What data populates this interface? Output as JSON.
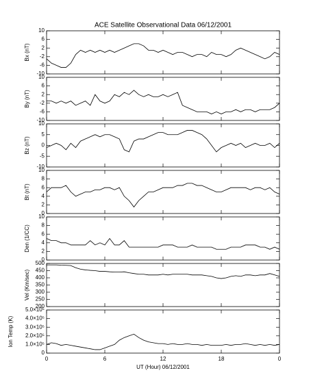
{
  "chart_data": [
    {
      "type": "line",
      "title": "ACE Satellite Observational Data   06/12/2001",
      "ylabel": "Bx (nT)",
      "color": "#000000",
      "x": [
        0,
        0.5,
        1,
        1.5,
        2,
        2.5,
        3,
        3.5,
        4,
        4.5,
        5,
        5.5,
        6,
        6.5,
        7,
        7.5,
        8,
        8.5,
        9,
        9.5,
        10,
        10.5,
        11,
        11.5,
        12,
        12.5,
        13,
        13.5,
        14,
        14.5,
        15,
        15.5,
        16,
        16.5,
        17,
        17.5,
        18,
        18.5,
        19,
        19.5,
        20,
        20.5,
        21,
        21.5,
        22,
        22.5,
        23,
        23.5,
        24
      ],
      "values": [
        -3,
        -5,
        -6,
        -7,
        -7,
        -5,
        -1,
        1,
        0,
        1,
        0,
        1,
        0,
        1,
        0,
        1,
        2,
        3,
        4,
        4,
        3,
        1,
        1,
        0,
        1,
        0,
        -1,
        0,
        0,
        -1,
        -2,
        -1,
        -1,
        -2,
        0,
        -1,
        -1,
        -2,
        -1,
        1,
        2,
        1,
        0,
        -1,
        -2,
        -3,
        -2,
        0,
        -1
      ],
      "xlim": [
        0,
        24
      ],
      "xticks": [
        0,
        6,
        12,
        18,
        24
      ],
      "ylim": [
        -10,
        10
      ],
      "yticks": [
        -10,
        -6,
        -2,
        2,
        6,
        10
      ]
    },
    {
      "type": "line",
      "ylabel": "By (nT)",
      "color": "#000000",
      "x": [
        0,
        0.5,
        1,
        1.5,
        2,
        2.5,
        3,
        3.5,
        4,
        4.5,
        5,
        5.5,
        6,
        6.5,
        7,
        7.5,
        8,
        8.5,
        9,
        9.5,
        10,
        10.5,
        11,
        11.5,
        12,
        12.5,
        13,
        13.5,
        14,
        14.5,
        15,
        15.5,
        16,
        16.5,
        17,
        17.5,
        18,
        18.5,
        19,
        19.5,
        20,
        20.5,
        21,
        21.5,
        22,
        22.5,
        23,
        23.5,
        24
      ],
      "values": [
        -1,
        -1,
        -2,
        -1,
        -2,
        -1,
        -3,
        -2,
        -1,
        -3,
        2,
        -1,
        -2,
        -1,
        2,
        1,
        3,
        2,
        4,
        2,
        1,
        2,
        1,
        1,
        2,
        1,
        2,
        3,
        -3,
        -4,
        -5,
        -6,
        -6,
        -6,
        -7,
        -6,
        -7,
        -6,
        -6,
        -5,
        -6,
        -5,
        -5,
        -6,
        -5,
        -5,
        -5,
        -4,
        -2
      ],
      "xlim": [
        0,
        24
      ],
      "xticks": [
        0,
        6,
        12,
        18,
        24
      ],
      "ylim": [
        -10,
        10
      ],
      "yticks": [
        -10,
        -6,
        -2,
        2,
        6,
        10
      ]
    },
    {
      "type": "line",
      "ylabel": "Bz (nT)",
      "color": "#000000",
      "x": [
        0,
        0.5,
        1,
        1.5,
        2,
        2.5,
        3,
        3.5,
        4,
        4.5,
        5,
        5.5,
        6,
        6.5,
        7,
        7.5,
        8,
        8.5,
        9,
        9.5,
        10,
        10.5,
        11,
        11.5,
        12,
        12.5,
        13,
        13.5,
        14,
        14.5,
        15,
        15.5,
        16,
        16.5,
        17,
        17.5,
        18,
        18.5,
        19,
        19.5,
        20,
        20.5,
        21,
        21.5,
        22,
        22.5,
        23,
        23.5,
        24
      ],
      "values": [
        -1,
        0,
        1,
        0,
        -2,
        1,
        -1,
        2,
        3,
        4,
        5,
        4,
        5,
        5,
        4,
        3,
        -2,
        -3,
        2,
        3,
        3,
        4,
        5,
        6,
        6,
        5,
        5,
        5,
        6,
        7,
        7,
        6,
        5,
        3,
        0,
        -3,
        -1,
        0,
        1,
        0,
        1,
        -1,
        0,
        1,
        0,
        0,
        1,
        -1,
        1
      ],
      "xlim": [
        0,
        24
      ],
      "xticks": [
        0,
        6,
        12,
        18,
        24
      ],
      "ylim": [
        -10,
        10
      ],
      "yticks": [
        -10,
        -5,
        0,
        5,
        10
      ]
    },
    {
      "type": "line",
      "ylabel": "Bt (nT)",
      "color": "#000000",
      "x": [
        0,
        0.5,
        1,
        1.5,
        2,
        2.5,
        3,
        3.5,
        4,
        4.5,
        5,
        5.5,
        6,
        6.5,
        7,
        7.5,
        8,
        8.5,
        9,
        9.5,
        10,
        10.5,
        11,
        11.5,
        12,
        12.5,
        13,
        13.5,
        14,
        14.5,
        15,
        15.5,
        16,
        16.5,
        17,
        17.5,
        18,
        18.5,
        19,
        19.5,
        20,
        20.5,
        21,
        21.5,
        22,
        22.5,
        23,
        23.5,
        24
      ],
      "values": [
        5,
        6,
        6,
        6,
        6.5,
        5,
        4,
        4.5,
        5,
        5,
        5.5,
        5.5,
        6,
        6,
        5.5,
        6,
        4,
        3,
        1.5,
        3,
        4,
        5,
        5,
        5.5,
        6,
        6,
        6,
        6.5,
        6.5,
        7,
        7,
        6.5,
        6.5,
        6,
        5.5,
        5,
        5,
        5.5,
        6,
        6,
        6,
        6,
        5.5,
        6,
        6,
        5.5,
        6,
        5,
        4.5
      ],
      "xlim": [
        0,
        24
      ],
      "xticks": [
        0,
        6,
        12,
        18,
        24
      ],
      "ylim": [
        0,
        10
      ],
      "yticks": [
        0,
        2,
        4,
        6,
        8,
        10
      ]
    },
    {
      "type": "line",
      "ylabel": "Den (1/CC)",
      "color": "#000000",
      "x": [
        0,
        0.5,
        1,
        1.5,
        2,
        2.5,
        3,
        3.5,
        4,
        4.5,
        5,
        5.5,
        6,
        6.5,
        7,
        7.5,
        8,
        8.5,
        9,
        9.5,
        10,
        10.5,
        11,
        11.5,
        12,
        12.5,
        13,
        13.5,
        14,
        14.5,
        15,
        15.5,
        16,
        16.5,
        17,
        17.5,
        18,
        18.5,
        19,
        19.5,
        20,
        20.5,
        21,
        21.5,
        22,
        22.5,
        23,
        23.5,
        24
      ],
      "values": [
        5,
        4.5,
        4.5,
        4,
        4,
        3.5,
        3.5,
        3.5,
        3.5,
        4.5,
        3.5,
        4,
        3.5,
        5,
        3.5,
        3.5,
        4.5,
        3,
        3,
        3,
        3,
        3,
        3,
        3,
        3.5,
        3.5,
        3.5,
        3,
        3,
        3,
        3.5,
        3,
        3,
        3,
        3,
        2.5,
        2.5,
        2.5,
        3,
        3,
        3,
        3.5,
        3.5,
        3.5,
        3,
        3,
        2.5,
        3,
        2.5
      ],
      "xlim": [
        0,
        24
      ],
      "xticks": [
        0,
        6,
        12,
        18,
        24
      ],
      "ylim": [
        0,
        10
      ],
      "yticks": [
        0,
        2,
        4,
        6,
        8,
        10
      ]
    },
    {
      "type": "line",
      "ylabel": "Vel (Km/sec)",
      "color": "#000000",
      "x": [
        0,
        0.5,
        1,
        1.5,
        2,
        2.5,
        3,
        3.5,
        4,
        4.5,
        5,
        5.5,
        6,
        6.5,
        7,
        7.5,
        8,
        8.5,
        9,
        9.5,
        10,
        10.5,
        11,
        11.5,
        12,
        12.5,
        13,
        13.5,
        14,
        14.5,
        15,
        15.5,
        16,
        16.5,
        17,
        17.5,
        18,
        18.5,
        19,
        19.5,
        20,
        20.5,
        21,
        21.5,
        22,
        22.5,
        23,
        23.5,
        24
      ],
      "values": [
        490,
        490,
        490,
        488,
        487,
        485,
        470,
        460,
        455,
        452,
        450,
        445,
        445,
        442,
        440,
        440,
        442,
        435,
        430,
        425,
        425,
        420,
        420,
        420,
        425,
        420,
        425,
        425,
        425,
        425,
        420,
        420,
        420,
        415,
        410,
        400,
        395,
        400,
        410,
        415,
        410,
        420,
        420,
        415,
        420,
        420,
        430,
        420,
        410
      ],
      "xlim": [
        0,
        24
      ],
      "xticks": [
        0,
        6,
        12,
        18,
        24
      ],
      "ylim": [
        200,
        500
      ],
      "yticks": [
        200,
        250,
        300,
        350,
        400,
        450,
        500
      ]
    },
    {
      "type": "line",
      "ylabel": "Ion Temp (K)",
      "xlabel": "UT (Hour)  06/12/2001",
      "color": "#000000",
      "x": [
        0,
        0.5,
        1,
        1.5,
        2,
        2.5,
        3,
        3.5,
        4,
        4.5,
        5,
        5.5,
        6,
        6.5,
        7,
        7.5,
        8,
        8.5,
        9,
        9.5,
        10,
        10.5,
        11,
        11.5,
        12,
        12.5,
        13,
        13.5,
        14,
        14.5,
        15,
        15.5,
        16,
        16.5,
        17,
        17.5,
        18,
        18.5,
        19,
        19.5,
        20,
        20.5,
        21,
        21.5,
        22,
        22.5,
        23,
        23.5,
        24
      ],
      "values": [
        100000,
        120000,
        110000,
        90000,
        100000,
        90000,
        80000,
        70000,
        60000,
        50000,
        40000,
        40000,
        60000,
        80000,
        100000,
        150000,
        180000,
        200000,
        220000,
        180000,
        150000,
        130000,
        120000,
        110000,
        110000,
        100000,
        110000,
        100000,
        100000,
        110000,
        100000,
        100000,
        90000,
        100000,
        90000,
        90000,
        90000,
        100000,
        90000,
        100000,
        100000,
        110000,
        100000,
        90000,
        100000,
        90000,
        100000,
        90000,
        100000
      ],
      "xlim": [
        0,
        24
      ],
      "xticks": [
        0,
        6,
        12,
        18,
        {
          "value": 24,
          "label": "0"
        }
      ],
      "ylim": [
        0,
        500000
      ],
      "yticks": [
        0,
        {
          "value": 100000,
          "label": "1.0×10⁵"
        },
        {
          "value": 200000,
          "label": "2.0×10⁵"
        },
        {
          "value": 300000,
          "label": "3.0×10⁵"
        },
        {
          "value": 400000,
          "label": "4.0×10⁵"
        },
        {
          "value": 500000,
          "label": "5.0×10⁵"
        }
      ]
    }
  ]
}
